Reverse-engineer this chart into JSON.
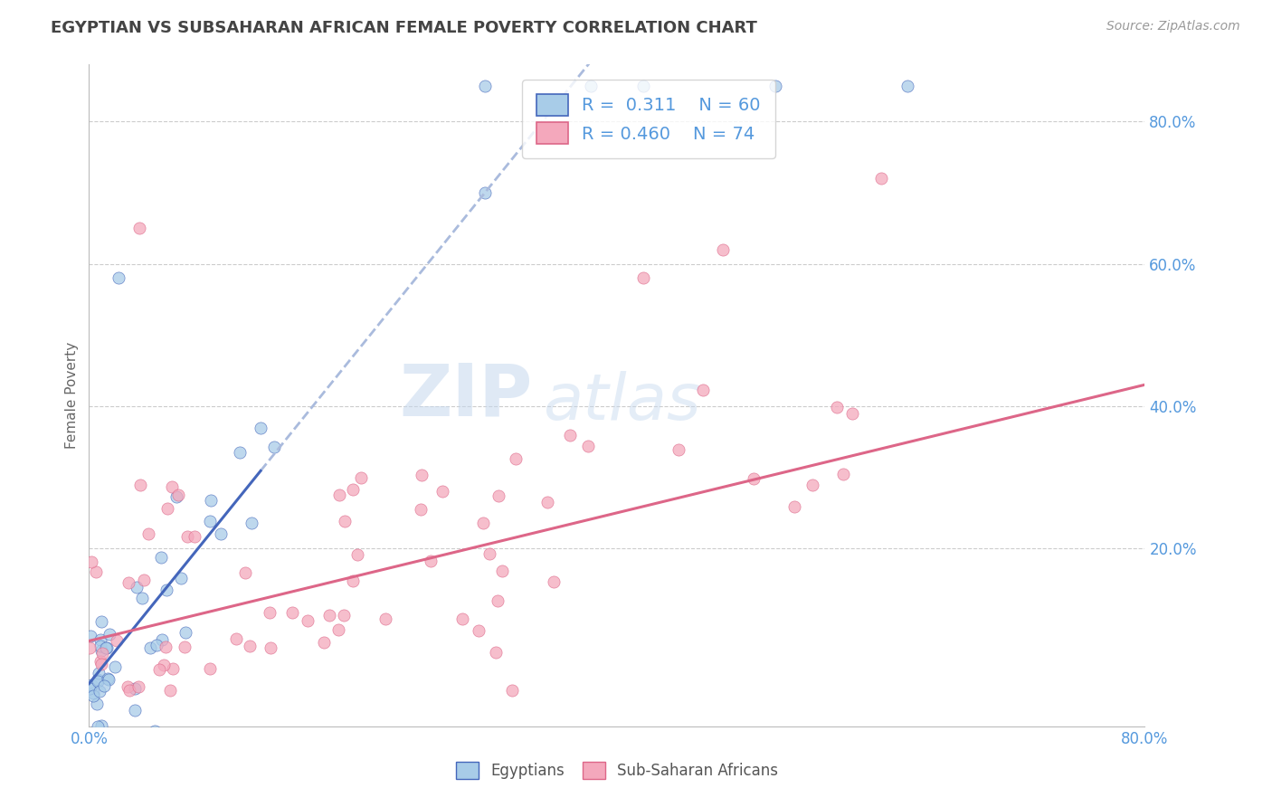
{
  "title": "EGYPTIAN VS SUBSAHARAN AFRICAN FEMALE POVERTY CORRELATION CHART",
  "source": "Source: ZipAtlas.com",
  "ylabel": "Female Poverty",
  "xmin": 0.0,
  "xmax": 0.8,
  "ymin": -0.05,
  "ymax": 0.88,
  "r_egyptian": 0.311,
  "n_egyptian": 60,
  "r_subsaharan": 0.46,
  "n_subsaharan": 74,
  "egyptian_color": "#a8cce8",
  "subsaharan_color": "#f4a8bc",
  "trendline_egyptian_color": "#4466bb",
  "trendline_subsaharan_color": "#dd6688",
  "trendline_egyptian_dashed_color": "#aabbdd",
  "watermark_color": "#ccddf0",
  "background_color": "#ffffff",
  "grid_color": "#cccccc",
  "axis_label_color": "#5599dd",
  "title_color": "#444444"
}
